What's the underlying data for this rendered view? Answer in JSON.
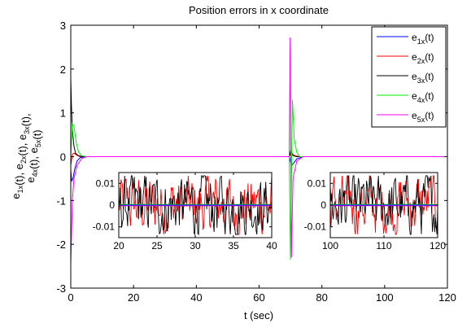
{
  "chart_data": {
    "type": "line",
    "title": "Position errors in x coordinate",
    "xlabel": "t (sec)",
    "ylabel": {
      "line1": [
        [
          "e",
          "1x"
        ],
        [
          "(t), e",
          "2x"
        ],
        [
          "(t), e",
          "3x"
        ],
        [
          "(t),",
          ""
        ]
      ],
      "line2": [
        [
          "e",
          "4x"
        ],
        [
          "(t), e",
          "5x"
        ],
        [
          "(t)",
          ""
        ]
      ]
    },
    "xlim": [
      0,
      120
    ],
    "ylim": [
      -3,
      3
    ],
    "xticks": [
      0,
      20,
      40,
      60,
      80,
      100,
      120
    ],
    "yticks": [
      -3,
      -2,
      -1,
      0,
      1,
      2,
      3
    ],
    "grid": false,
    "legend": {
      "placement": "top-right"
    },
    "series": [
      {
        "name": "e1x(t)",
        "label_main": "e",
        "label_sub": "1x",
        "label_tail": "(t)",
        "color": "#0000ff",
        "x": [
          0,
          0.3,
          0.7,
          1.2,
          2,
          3,
          5,
          69.6,
          70.3,
          71,
          72,
          74,
          120
        ],
        "y": [
          -0.3,
          -0.55,
          -0.5,
          -0.3,
          -0.1,
          -0.02,
          0,
          0,
          -0.2,
          -0.15,
          -0.05,
          0,
          0
        ]
      },
      {
        "name": "e2x(t)",
        "label_main": "e",
        "label_sub": "2x",
        "label_tail": "(t)",
        "color": "#ff0000",
        "x": [
          0,
          0.2,
          0.5,
          1,
          2,
          3,
          5,
          69.6,
          70.2,
          70.8,
          71.5,
          73,
          120
        ],
        "y": [
          -0.2,
          -0.1,
          0.05,
          0.08,
          0.03,
          0,
          0,
          0,
          0.1,
          0.05,
          0.02,
          0,
          0
        ]
      },
      {
        "name": "e3x(t)",
        "label_main": "e",
        "label_sub": "3x",
        "label_tail": "(t)",
        "color": "#000000",
        "x": [
          0,
          0.2,
          0.5,
          1,
          1.5,
          2.5,
          4,
          69.6,
          70.1,
          70.5,
          71,
          72,
          120
        ],
        "y": [
          1.8,
          1.2,
          0.6,
          0.25,
          0.08,
          0.02,
          0,
          0,
          0.15,
          0.05,
          0.02,
          0,
          0
        ]
      },
      {
        "name": "e4x(t)",
        "label_main": "e",
        "label_sub": "4x",
        "label_tail": "(t)",
        "color": "#00ee00",
        "x": [
          0,
          0.5,
          1,
          1.8,
          2.5,
          3.5,
          5,
          69.6,
          70,
          70.6,
          71.2,
          72,
          73,
          120
        ],
        "y": [
          0,
          0.75,
          0.7,
          0.3,
          0.1,
          0.02,
          0,
          0,
          -2.35,
          1.3,
          0.4,
          0.1,
          0,
          0
        ]
      },
      {
        "name": "e5x(t)",
        "label_main": "e",
        "label_sub": "5x",
        "label_tail": "(t)",
        "color": "#ff00ff",
        "x": [
          0,
          0.2,
          0.5,
          1,
          2,
          3.5,
          5,
          69.6,
          69.9,
          70.3,
          70.8,
          72,
          74,
          120
        ],
        "y": [
          -2.45,
          -1.9,
          -1,
          -0.5,
          -0.2,
          -0.04,
          0,
          0,
          2.72,
          -2.3,
          -0.5,
          -0.1,
          0,
          0
        ]
      }
    ],
    "insets": [
      {
        "xlim": [
          20,
          40
        ],
        "ylim": [
          -0.015,
          0.015
        ],
        "xticks": [
          20,
          25,
          30,
          35,
          40
        ],
        "yticks": [
          -0.01,
          0,
          0.01
        ],
        "yticklabels": [
          "-0.01",
          "0",
          "0.01"
        ]
      },
      {
        "xlim": [
          100,
          120
        ],
        "ylim": [
          -0.015,
          0.015
        ],
        "xticks": [
          100,
          110,
          120
        ],
        "yticks": [
          -0.01,
          0,
          0.01
        ],
        "yticklabels": [
          "-0.01",
          "0",
          "0.01"
        ]
      }
    ]
  }
}
